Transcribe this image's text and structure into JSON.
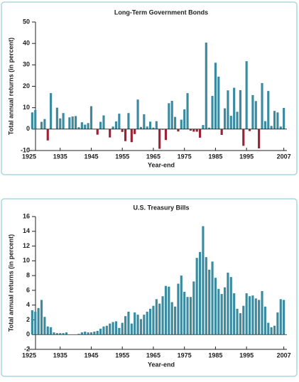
{
  "chart_data": [
    {
      "type": "bar",
      "title": "Long-Term Government Bonds",
      "x_label": "Year-end",
      "y_label": "Total annual returns (in percent)",
      "x": [
        1926,
        1927,
        1928,
        1929,
        1930,
        1931,
        1932,
        1933,
        1934,
        1935,
        1936,
        1937,
        1938,
        1939,
        1940,
        1941,
        1942,
        1943,
        1944,
        1945,
        1946,
        1947,
        1948,
        1949,
        1950,
        1951,
        1952,
        1953,
        1954,
        1955,
        1956,
        1957,
        1958,
        1959,
        1960,
        1961,
        1962,
        1963,
        1964,
        1965,
        1966,
        1967,
        1968,
        1969,
        1970,
        1971,
        1972,
        1973,
        1974,
        1975,
        1976,
        1977,
        1978,
        1979,
        1980,
        1981,
        1982,
        1983,
        1984,
        1985,
        1986,
        1987,
        1988,
        1989,
        1990,
        1991,
        1992,
        1993,
        1994,
        1995,
        1996,
        1997,
        1998,
        1999,
        2000,
        2001,
        2002,
        2003,
        2004,
        2005,
        2006,
        2007
      ],
      "values": [
        7.8,
        8.9,
        0.1,
        3.4,
        4.7,
        -5.3,
        16.8,
        -0.1,
        10.0,
        5.0,
        7.5,
        0.2,
        5.5,
        5.9,
        6.1,
        0.9,
        3.2,
        2.1,
        2.8,
        10.7,
        -0.1,
        -2.6,
        3.4,
        6.4,
        0.1,
        -3.9,
        1.2,
        3.6,
        7.2,
        -1.3,
        -5.6,
        7.5,
        -6.1,
        -2.3,
        13.8,
        1.0,
        6.9,
        1.2,
        3.5,
        0.7,
        3.7,
        -9.2,
        -0.3,
        -5.1,
        12.1,
        13.2,
        5.7,
        -1.1,
        4.4,
        9.2,
        16.8,
        -0.7,
        -1.2,
        -1.2,
        -4.0,
        1.9,
        40.4,
        0.7,
        15.5,
        31.0,
        24.5,
        -2.7,
        9.7,
        18.1,
        6.2,
        19.3,
        8.1,
        18.2,
        -7.8,
        31.7,
        -0.9,
        15.9,
        13.1,
        -9.0,
        21.5,
        3.7,
        17.8,
        1.5,
        8.5,
        7.8,
        1.2,
        9.9
      ],
      "color": "#3a8aa0",
      "negative_color": "#9b2335",
      "xlim": [
        1925,
        2008
      ],
      "xticks": [
        1925,
        1935,
        1945,
        1955,
        1965,
        1975,
        1985,
        1995,
        2007
      ],
      "ylim": [
        -10,
        50
      ],
      "yticks": [
        -10,
        0,
        10,
        20,
        30,
        40,
        50
      ]
    },
    {
      "type": "bar",
      "title": "U.S. Treasury Bills",
      "x_label": "Year-end",
      "y_label": "Total annual returns (in percent)",
      "x": [
        1926,
        1927,
        1928,
        1929,
        1930,
        1931,
        1932,
        1933,
        1934,
        1935,
        1936,
        1937,
        1938,
        1939,
        1940,
        1941,
        1942,
        1943,
        1944,
        1945,
        1946,
        1947,
        1948,
        1949,
        1950,
        1951,
        1952,
        1953,
        1954,
        1955,
        1956,
        1957,
        1958,
        1959,
        1960,
        1961,
        1962,
        1963,
        1964,
        1965,
        1966,
        1967,
        1968,
        1969,
        1970,
        1971,
        1972,
        1973,
        1974,
        1975,
        1976,
        1977,
        1978,
        1979,
        1980,
        1981,
        1982,
        1983,
        1984,
        1985,
        1986,
        1987,
        1988,
        1989,
        1990,
        1991,
        1992,
        1993,
        1994,
        1995,
        1996,
        1997,
        1998,
        1999,
        2000,
        2001,
        2002,
        2003,
        2004,
        2005,
        2006,
        2007
      ],
      "values": [
        3.3,
        3.1,
        3.6,
        4.7,
        2.4,
        1.1,
        1.0,
        0.3,
        0.2,
        0.2,
        0.2,
        0.3,
        0.0,
        0.0,
        0.0,
        0.1,
        0.3,
        0.4,
        0.3,
        0.3,
        0.4,
        0.5,
        0.8,
        1.1,
        1.2,
        1.5,
        1.7,
        1.8,
        0.9,
        1.6,
        2.5,
        3.1,
        1.5,
        3.0,
        2.7,
        2.1,
        2.7,
        3.1,
        3.5,
        3.9,
        4.8,
        4.2,
        5.2,
        6.6,
        6.5,
        4.4,
        3.8,
        6.9,
        8.0,
        5.8,
        5.1,
        5.1,
        7.2,
        10.4,
        11.2,
        14.7,
        10.5,
        8.8,
        9.9,
        7.7,
        6.2,
        5.5,
        6.4,
        8.4,
        7.8,
        5.6,
        3.5,
        2.9,
        3.9,
        5.6,
        5.2,
        5.3,
        4.9,
        4.7,
        5.9,
        3.8,
        1.6,
        1.0,
        1.2,
        3.0,
        4.8,
        4.7
      ],
      "color": "#3a8aa0",
      "negative_color": "#9b2335",
      "xlim": [
        1925,
        2008
      ],
      "xticks": [
        1925,
        1935,
        1945,
        1955,
        1965,
        1975,
        1985,
        1995,
        2007
      ],
      "ylim": [
        -2,
        16
      ],
      "yticks": [
        -2,
        0,
        2,
        4,
        6,
        8,
        10,
        12,
        14,
        16
      ]
    }
  ]
}
